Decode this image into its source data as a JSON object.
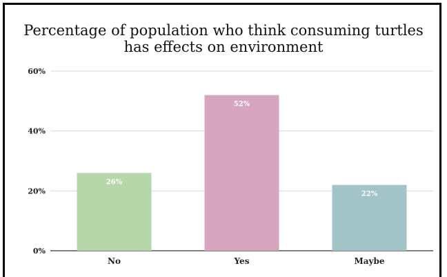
{
  "chart_data": {
    "type": "bar",
    "title_lines": [
      "Percentage of population who think consuming turtles",
      "has effects on environment"
    ],
    "categories": [
      "No",
      "Yes",
      "Maybe"
    ],
    "values": [
      26,
      52,
      22
    ],
    "data_labels": [
      "26%",
      "52%",
      "22%"
    ],
    "colors": [
      "#b6d7a8",
      "#d5a6bd",
      "#a2c4c9"
    ],
    "ylim": [
      0,
      60
    ],
    "y_ticks": [
      0,
      20,
      40,
      60
    ],
    "y_tick_labels": [
      "0%",
      "20%",
      "40%",
      "60%"
    ],
    "grid": true,
    "legend": "none"
  }
}
